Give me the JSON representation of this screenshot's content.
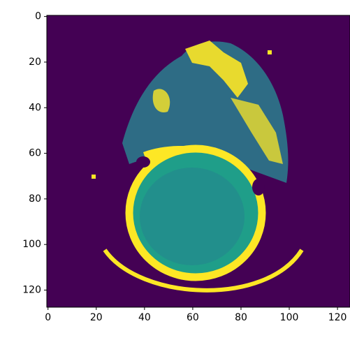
{
  "chart_data": {
    "type": "image",
    "xlim": [
      -0.5,
      127.5
    ],
    "ylim": [
      127.5,
      -0.5
    ],
    "xticks": [
      0,
      20,
      40,
      60,
      80,
      100,
      120
    ],
    "yticks": [
      0,
      20,
      40,
      60,
      80,
      100,
      120
    ],
    "background": "#440154"
  }
}
